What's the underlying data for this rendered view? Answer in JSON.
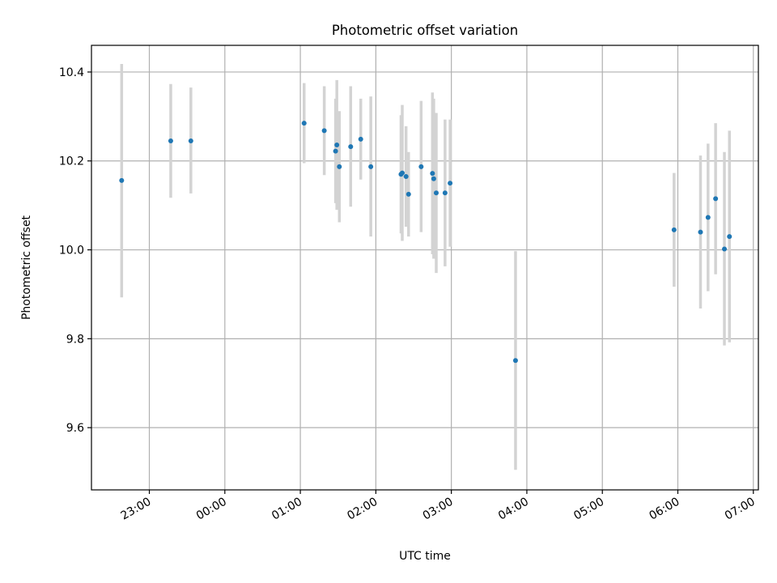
{
  "chart_data": {
    "type": "scatter",
    "title": "Photometric offset variation",
    "xlabel": "UTC time",
    "ylabel": "Photometric offset",
    "x_unit": "UTC hh:mm (values after midnight written as 24:mm and later)",
    "xlim": [
      "22:14",
      "31:04"
    ],
    "ylim": [
      9.46,
      10.46
    ],
    "x_ticks": [
      "23:00",
      "24:00",
      "25:00",
      "26:00",
      "27:00",
      "28:00",
      "29:00",
      "30:00",
      "31:00"
    ],
    "x_tick_labels": [
      "23:00",
      "00:00",
      "01:00",
      "02:00",
      "03:00",
      "04:00",
      "05:00",
      "06:00",
      "07:00"
    ],
    "y_ticks": [
      9.6,
      9.8,
      10.0,
      10.2,
      10.4
    ],
    "y_tick_labels": [
      "9.6",
      "9.8",
      "10.0",
      "10.2",
      "10.4"
    ],
    "grid": true,
    "marker_color": "#1f77b4",
    "errorbar_color": "#d3d3d3",
    "points": [
      {
        "x": "22:38",
        "y": 10.156,
        "low": 9.893,
        "high": 10.418
      },
      {
        "x": "23:17",
        "y": 10.245,
        "low": 10.117,
        "high": 10.373
      },
      {
        "x": "23:33",
        "y": 10.245,
        "low": 10.127,
        "high": 10.365
      },
      {
        "x": "25:03",
        "y": 10.285,
        "low": 10.195,
        "high": 10.375
      },
      {
        "x": "25:19",
        "y": 10.268,
        "low": 10.168,
        "high": 10.368
      },
      {
        "x": "25:28",
        "y": 10.222,
        "low": 10.105,
        "high": 10.34
      },
      {
        "x": "25:29",
        "y": 10.236,
        "low": 10.09,
        "high": 10.382
      },
      {
        "x": "25:31",
        "y": 10.187,
        "low": 10.062,
        "high": 10.312
      },
      {
        "x": "25:40",
        "y": 10.232,
        "low": 10.097,
        "high": 10.368
      },
      {
        "x": "25:48",
        "y": 10.249,
        "low": 10.158,
        "high": 10.34
      },
      {
        "x": "25:56",
        "y": 10.187,
        "low": 10.03,
        "high": 10.345
      },
      {
        "x": "26:20",
        "y": 10.17,
        "low": 10.037,
        "high": 10.303
      },
      {
        "x": "26:21",
        "y": 10.173,
        "low": 10.02,
        "high": 10.326
      },
      {
        "x": "26:24",
        "y": 10.165,
        "low": 10.052,
        "high": 10.278
      },
      {
        "x": "26:26",
        "y": 10.125,
        "low": 10.03,
        "high": 10.22
      },
      {
        "x": "26:36",
        "y": 10.187,
        "low": 10.04,
        "high": 10.335
      },
      {
        "x": "26:45",
        "y": 10.172,
        "low": 9.99,
        "high": 10.354
      },
      {
        "x": "26:46",
        "y": 10.16,
        "low": 9.98,
        "high": 10.34
      },
      {
        "x": "26:48",
        "y": 10.128,
        "low": 9.948,
        "high": 10.308
      },
      {
        "x": "26:55",
        "y": 10.128,
        "low": 9.963,
        "high": 10.293
      },
      {
        "x": "26:59",
        "y": 10.15,
        "low": 10.007,
        "high": 10.293
      },
      {
        "x": "27:51",
        "y": 9.751,
        "low": 9.505,
        "high": 9.997
      },
      {
        "x": "29:57",
        "y": 10.045,
        "low": 9.917,
        "high": 10.173
      },
      {
        "x": "30:18",
        "y": 10.04,
        "low": 9.868,
        "high": 10.212
      },
      {
        "x": "30:24",
        "y": 10.073,
        "low": 9.907,
        "high": 10.239
      },
      {
        "x": "30:30",
        "y": 10.115,
        "low": 9.945,
        "high": 10.285
      },
      {
        "x": "30:37",
        "y": 10.002,
        "low": 9.785,
        "high": 10.22
      },
      {
        "x": "30:41",
        "y": 10.03,
        "low": 9.792,
        "high": 10.268
      }
    ]
  }
}
